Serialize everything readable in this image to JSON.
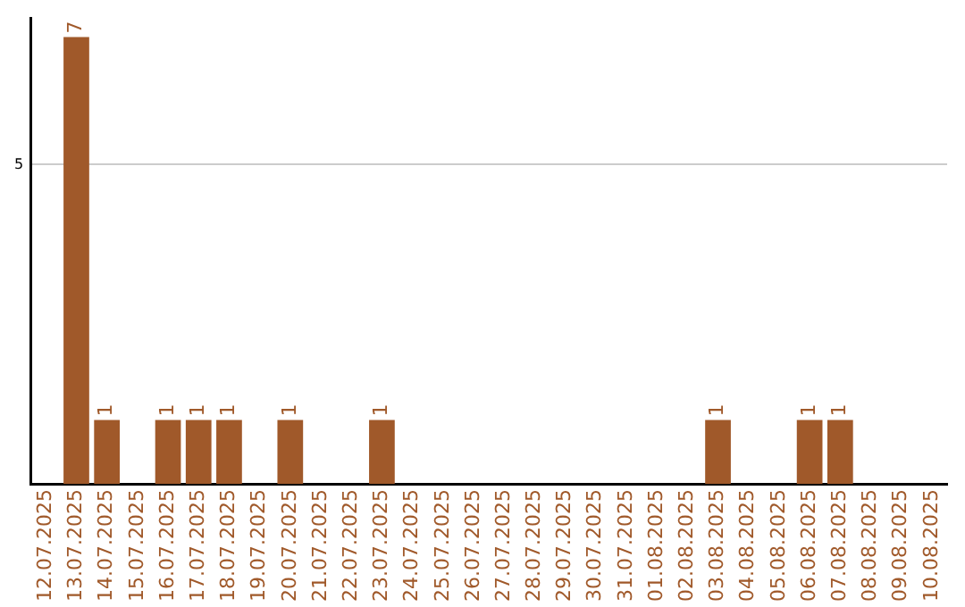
{
  "chart_data": {
    "type": "bar",
    "categories": [
      "12.07.2025",
      "13.07.2025",
      "14.07.2025",
      "15.07.2025",
      "16.07.2025",
      "17.07.2025",
      "18.07.2025",
      "19.07.2025",
      "20.07.2025",
      "21.07.2025",
      "22.07.2025",
      "23.07.2025",
      "24.07.2025",
      "25.07.2025",
      "26.07.2025",
      "27.07.2025",
      "28.07.2025",
      "29.07.2025",
      "30.07.2025",
      "31.07.2025",
      "01.08.2025",
      "02.08.2025",
      "03.08.2025",
      "04.08.2025",
      "05.08.2025",
      "06.08.2025",
      "07.08.2025",
      "08.08.2025",
      "09.08.2025",
      "10.08.2025"
    ],
    "values": [
      0,
      7,
      1,
      0,
      1,
      1,
      1,
      0,
      1,
      0,
      0,
      1,
      0,
      0,
      0,
      0,
      0,
      0,
      0,
      0,
      0,
      0,
      1,
      0,
      0,
      1,
      1,
      0,
      0,
      0
    ],
    "value_labels": [
      null,
      "7",
      "1",
      null,
      "1",
      "1",
      "1",
      null,
      "1",
      null,
      null,
      "1",
      null,
      null,
      null,
      null,
      null,
      null,
      null,
      null,
      null,
      null,
      "1",
      null,
      null,
      "1",
      "1",
      null,
      null,
      null
    ],
    "color": "#a0592a",
    "ylim": [
      0,
      7.3
    ],
    "yticks": [
      5
    ],
    "grid": "y",
    "legend": false
  }
}
